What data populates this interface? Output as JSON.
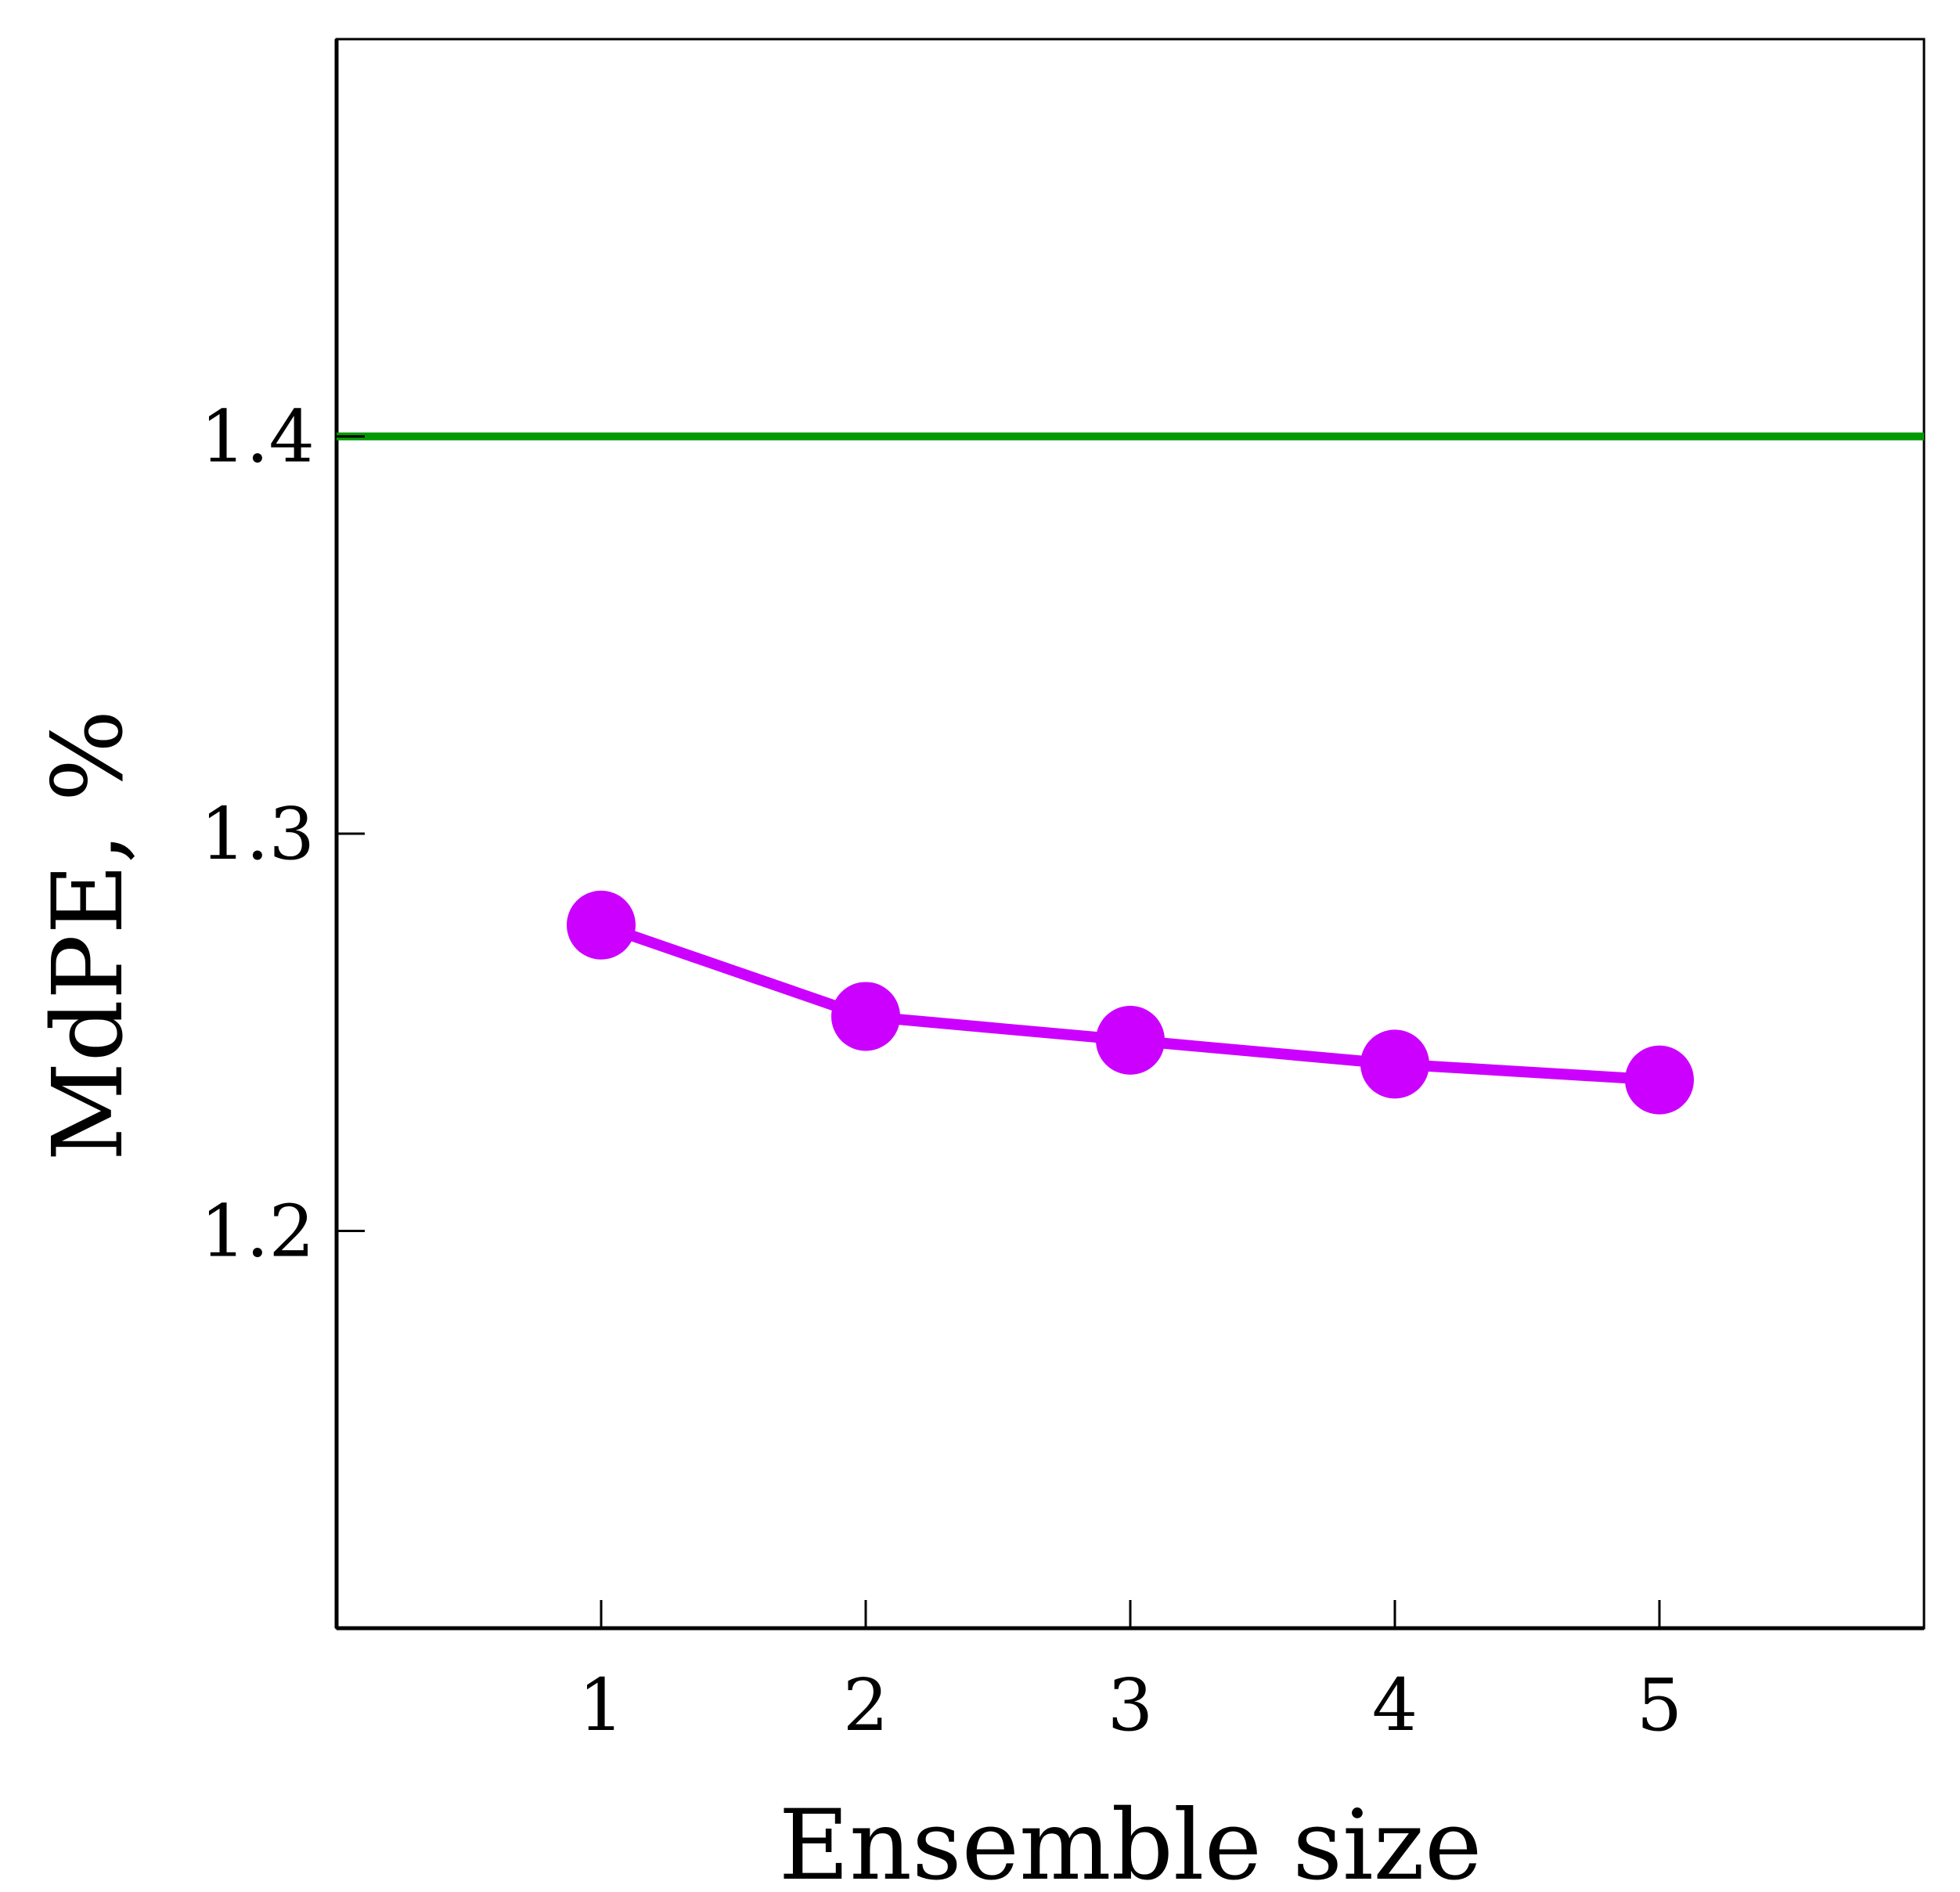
{
  "chart_data": {
    "type": "line",
    "title": "",
    "xlabel": "Ensemble size",
    "ylabel": "MdPE, %",
    "xlim": [
      0,
      6
    ],
    "ylim": [
      1.1,
      1.5
    ],
    "x_ticks": [
      1,
      2,
      3,
      4,
      5
    ],
    "y_ticks": [
      1.2,
      1.3,
      1.4
    ],
    "x_tick_labels": [
      "1",
      "2",
      "3",
      "4",
      "5"
    ],
    "y_tick_labels": [
      "1.2",
      "1.3",
      "1.4"
    ],
    "grid": false,
    "series": [
      {
        "color": "#cc00ff",
        "marker": "circle",
        "x": [
          1,
          2,
          3,
          4,
          5
        ],
        "values": [
          1.277,
          1.254,
          1.248,
          1.242,
          1.238
        ]
      }
    ],
    "reference_lines": [
      {
        "orientation": "horizontal",
        "value": 1.4,
        "color": "#009900"
      }
    ]
  }
}
